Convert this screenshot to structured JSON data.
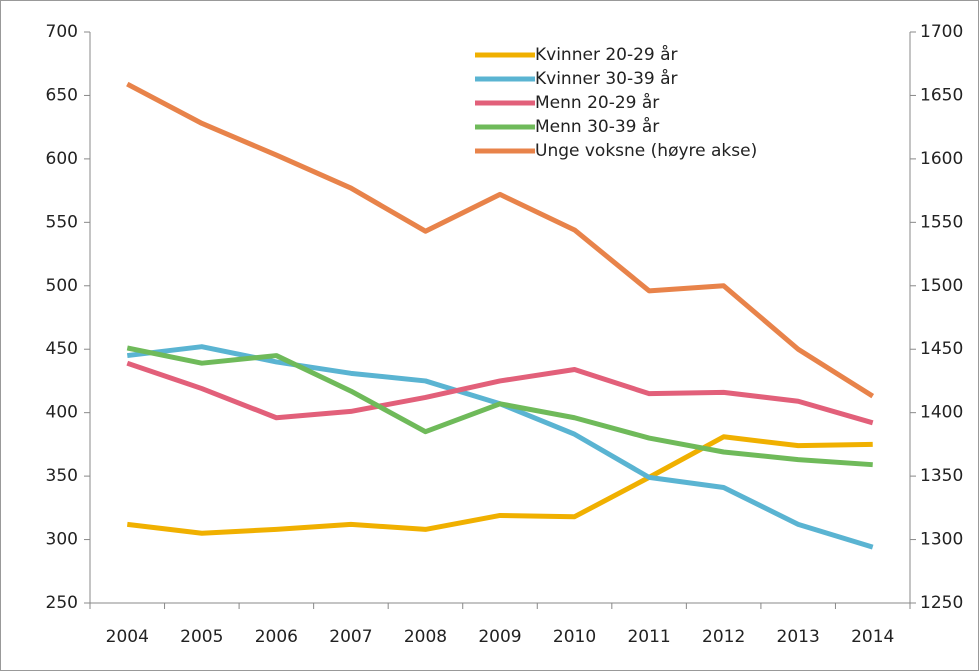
{
  "chart_data": {
    "type": "line",
    "categories": [
      "2004",
      "2005",
      "2006",
      "2007",
      "2008",
      "2009",
      "2010",
      "2011",
      "2012",
      "2013",
      "2014"
    ],
    "series": [
      {
        "name": "Kvinner 20-29 år",
        "color": "#f0b000",
        "values": [
          312,
          305,
          308,
          312,
          308,
          319,
          318,
          349,
          381,
          374,
          375
        ]
      },
      {
        "name": "Kvinner 30-39 år",
        "color": "#5ab4d2",
        "values": [
          445,
          452,
          440,
          431,
          425,
          407,
          383,
          349,
          341,
          312,
          294
        ]
      },
      {
        "name": "Menn 20-29 år",
        "color": "#e2607a",
        "values": [
          439,
          419,
          396,
          401,
          412,
          425,
          434,
          415,
          416,
          409,
          392
        ]
      },
      {
        "name": "Menn 30-39 år",
        "color": "#6fba5a",
        "values": [
          451,
          439,
          445,
          417,
          385,
          407,
          396,
          380,
          369,
          363,
          359
        ]
      },
      {
        "name": "Unge voksne (høyre akse)",
        "color": "#e8834a",
        "axis": "y2",
        "values": [
          1659,
          1628,
          1603,
          1577,
          1543,
          1572,
          1544,
          1496,
          1500,
          1450,
          1413
        ]
      }
    ],
    "ylim": [
      250,
      700
    ],
    "yticks": [
      250,
      300,
      350,
      400,
      450,
      500,
      550,
      600,
      650,
      700
    ],
    "y2lim": [
      1250,
      1700
    ],
    "y2ticks": [
      1250,
      1300,
      1350,
      1400,
      1450,
      1500,
      1550,
      1600,
      1650,
      1700
    ],
    "legend": "upper center"
  }
}
